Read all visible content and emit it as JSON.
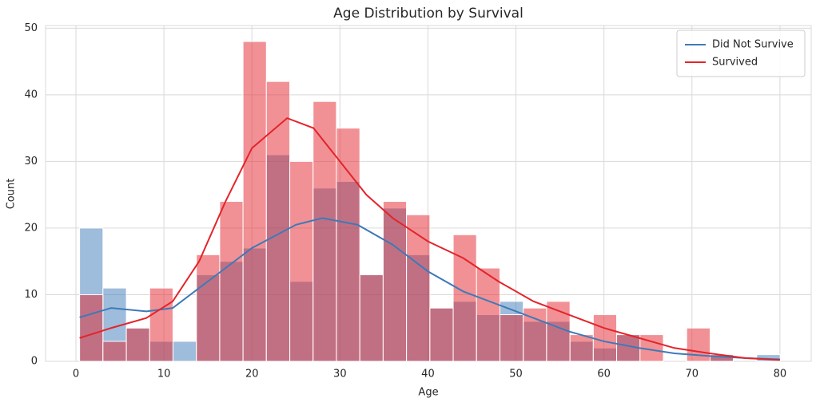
{
  "chart_data": {
    "type": "histogram",
    "title": "Age Distribution by Survival",
    "xlabel": "Age",
    "ylabel": "Count",
    "bins": [
      0.42,
      3.07,
      5.73,
      8.38,
      11.03,
      13.69,
      16.34,
      18.99,
      21.64,
      24.3,
      26.95,
      29.6,
      32.26,
      34.91,
      37.56,
      40.22,
      42.87,
      45.52,
      48.18,
      50.83,
      53.48,
      56.14,
      58.79,
      61.44,
      64.1,
      66.75,
      69.4,
      72.06,
      74.71,
      77.36,
      80.02
    ],
    "series": [
      {
        "name": "Did Not Survive",
        "color": "#3d7ab8",
        "values": [
          20,
          11,
          5,
          3,
          3,
          13,
          15,
          17,
          31,
          12,
          26,
          27,
          13,
          23,
          16,
          8,
          9,
          7,
          9,
          6,
          6,
          3,
          2,
          4,
          0,
          0,
          0,
          1,
          0,
          1
        ],
        "kde": {
          "x": [
            0.42,
            4,
            8,
            11,
            15,
            20,
            25,
            28,
            32,
            36,
            40,
            44,
            48,
            52,
            56,
            60,
            64,
            68,
            72,
            76,
            80
          ],
          "values": [
            6.6,
            8,
            7.5,
            8,
            12,
            17,
            20.5,
            21.5,
            20.5,
            17.5,
            13.5,
            10.5,
            8.5,
            6.5,
            4.5,
            3,
            2,
            1.2,
            0.8,
            0.5,
            0.3
          ]
        }
      },
      {
        "name": "Survived",
        "color": "#e3242b",
        "values": [
          10,
          3,
          5,
          11,
          0,
          16,
          24,
          48,
          42,
          30,
          39,
          35,
          13,
          24,
          22,
          8,
          19,
          14,
          7,
          8,
          9,
          4,
          7,
          4,
          4,
          0,
          5,
          1,
          0,
          0
        ],
        "kde": {
          "x": [
            0.42,
            4,
            8,
            11,
            14,
            17,
            20,
            24,
            27,
            30,
            33,
            36,
            40,
            44,
            48,
            52,
            56,
            60,
            64,
            68,
            72,
            76,
            80
          ],
          "values": [
            3.5,
            5,
            6.5,
            9,
            15,
            24,
            32,
            36.5,
            35,
            30,
            25,
            21.5,
            18,
            15.5,
            12,
            9,
            7,
            5,
            3.5,
            2,
            1.2,
            0.5,
            0.2
          ]
        }
      }
    ],
    "xlim": [
      -3.45,
      83.55
    ],
    "ylim": [
      0,
      50.4
    ],
    "xticks": [
      0,
      10,
      20,
      30,
      40,
      50,
      60,
      70,
      80
    ],
    "yticks": [
      0,
      10,
      20,
      30,
      40,
      50
    ],
    "grid": true,
    "legend": "upper right"
  }
}
